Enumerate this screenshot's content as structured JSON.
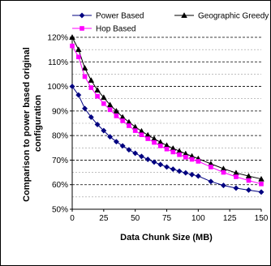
{
  "chart_data": {
    "type": "line",
    "title": "",
    "xlabel": "Data Chunk Size (MB)",
    "ylabel": "Comparison to power based original configuration",
    "ylabel_lines": [
      "Comparison to power based original",
      "configuration"
    ],
    "xlim": [
      0,
      150
    ],
    "ylim": [
      50,
      120
    ],
    "x_ticks": [
      0,
      25,
      50,
      75,
      100,
      125,
      150
    ],
    "x_tick_labels": [
      "0",
      "25",
      "50",
      "75",
      "100",
      "125",
      "150"
    ],
    "y_ticks": [
      50,
      60,
      70,
      80,
      90,
      100,
      110,
      120
    ],
    "y_tick_labels": [
      "50%",
      "60%",
      "70%",
      "80%",
      "90%",
      "100%",
      "110%",
      "120%"
    ],
    "grid": "horizontal dashed",
    "legend_position": "top",
    "x": [
      0,
      5,
      10,
      15,
      20,
      25,
      30,
      35,
      40,
      45,
      50,
      55,
      60,
      65,
      70,
      75,
      80,
      85,
      90,
      95,
      100,
      110,
      120,
      130,
      140,
      150
    ],
    "series": [
      {
        "name": "Power Based",
        "color": "#000080",
        "marker": "diamond",
        "values": [
          100,
          96.5,
          91,
          87.5,
          84.5,
          82,
          79.5,
          77.5,
          75.8,
          74.2,
          72.8,
          71.5,
          70.3,
          69.2,
          68.2,
          67.2,
          66.3,
          65.5,
          64.8,
          64.1,
          63.5,
          61.3,
          59.7,
          58.6,
          57.8,
          57
        ]
      },
      {
        "name": "Geographic Greedy",
        "color": "#000000",
        "marker": "triangle",
        "values": [
          120,
          115,
          107.5,
          102.5,
          98.5,
          95.5,
          92.5,
          90,
          87.5,
          85.5,
          83.5,
          81.8,
          80.2,
          78.7,
          77.3,
          76,
          74.8,
          73.7,
          72.6,
          71.6,
          70.6,
          68.5,
          66.5,
          64.8,
          63.5,
          62.3
        ]
      },
      {
        "name": "Hop Based",
        "color": "#ff00ff",
        "marker": "square",
        "values": [
          116.5,
          112,
          104,
          99.5,
          96,
          93,
          90.5,
          88,
          86,
          84,
          82,
          80.3,
          78.7,
          77.2,
          75.8,
          74.5,
          73.3,
          72.2,
          71.2,
          70.3,
          69.5,
          67.2,
          65,
          63.2,
          61.7,
          60.3
        ]
      }
    ]
  }
}
